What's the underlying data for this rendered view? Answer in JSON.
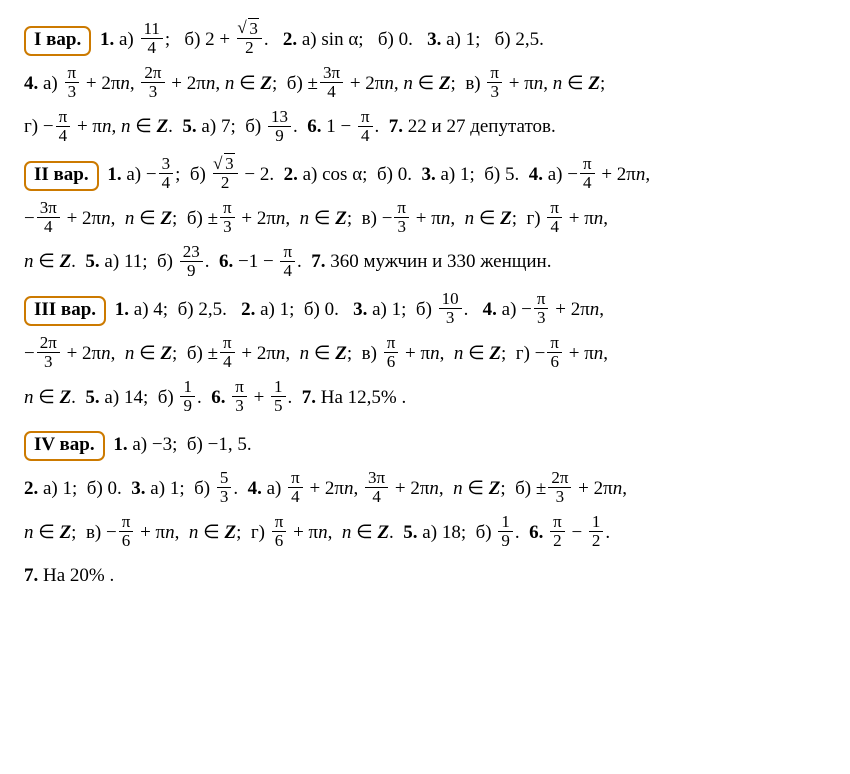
{
  "variants": {
    "v1": {
      "label": "I вар."
    },
    "v2": {
      "label": "II вар."
    },
    "v3": {
      "label": "III вар."
    },
    "v4": {
      "label": "IV вар."
    }
  },
  "t": {
    "q1": "1.",
    "q2": "2.",
    "q3": "3.",
    "q4": "4.",
    "q5": "5.",
    "q6": "6.",
    "q7": "7.",
    "a": "а)",
    "b": "б)",
    "v": "в)",
    "g": "г)",
    "sc": ";",
    "pd": ".",
    "cm": ",",
    "nZ": "n ∈ Z",
    "pi": "π",
    "n": "n",
    "sin": "sin α",
    "cos": "cos α",
    "plus": "+",
    "minus": "−",
    "pm": "±",
    "two": "2",
    "zero": "0",
    "one": "1",
    "twofive": "2,5",
    "five": "5",
    "m1p5": "−1, 5",
    "m3": "−3",
    "seven": "7",
    "eleven": "11",
    "fourteen": "14",
    "eighteen": "18",
    "four": "4",
    "v1_7": "22 и 27 депутатов.",
    "v2_7": "360 мужчин и 330 женщин.",
    "v3_7": "На 12,5% .",
    "v4_7": "На 20% ."
  },
  "f": {
    "11_4": {
      "n": "11",
      "d": "4"
    },
    "r3_2": {
      "n": "√3",
      "d": "2"
    },
    "pi_3": {
      "n": "π",
      "d": "3"
    },
    "2pi_3": {
      "n": "2π",
      "d": "3"
    },
    "3pi_4": {
      "n": "3π",
      "d": "4"
    },
    "pi_4": {
      "n": "π",
      "d": "4"
    },
    "13_9": {
      "n": "13",
      "d": "9"
    },
    "3_4": {
      "n": "3",
      "d": "4"
    },
    "23_9": {
      "n": "23",
      "d": "9"
    },
    "10_3": {
      "n": "10",
      "d": "3"
    },
    "pi_6": {
      "n": "π",
      "d": "6"
    },
    "1_9": {
      "n": "1",
      "d": "9"
    },
    "1_5": {
      "n": "1",
      "d": "5"
    },
    "5_3": {
      "n": "5",
      "d": "3"
    },
    "pi_2": {
      "n": "π",
      "d": "2"
    },
    "1_2": {
      "n": "1",
      "d": "2"
    }
  },
  "style": {
    "border_color": "#cc7a00",
    "text_color": "#000000",
    "bg_color": "#ffffff",
    "font_family": "Times New Roman",
    "base_fontsize_pt": 14,
    "line_height": 2.3
  }
}
